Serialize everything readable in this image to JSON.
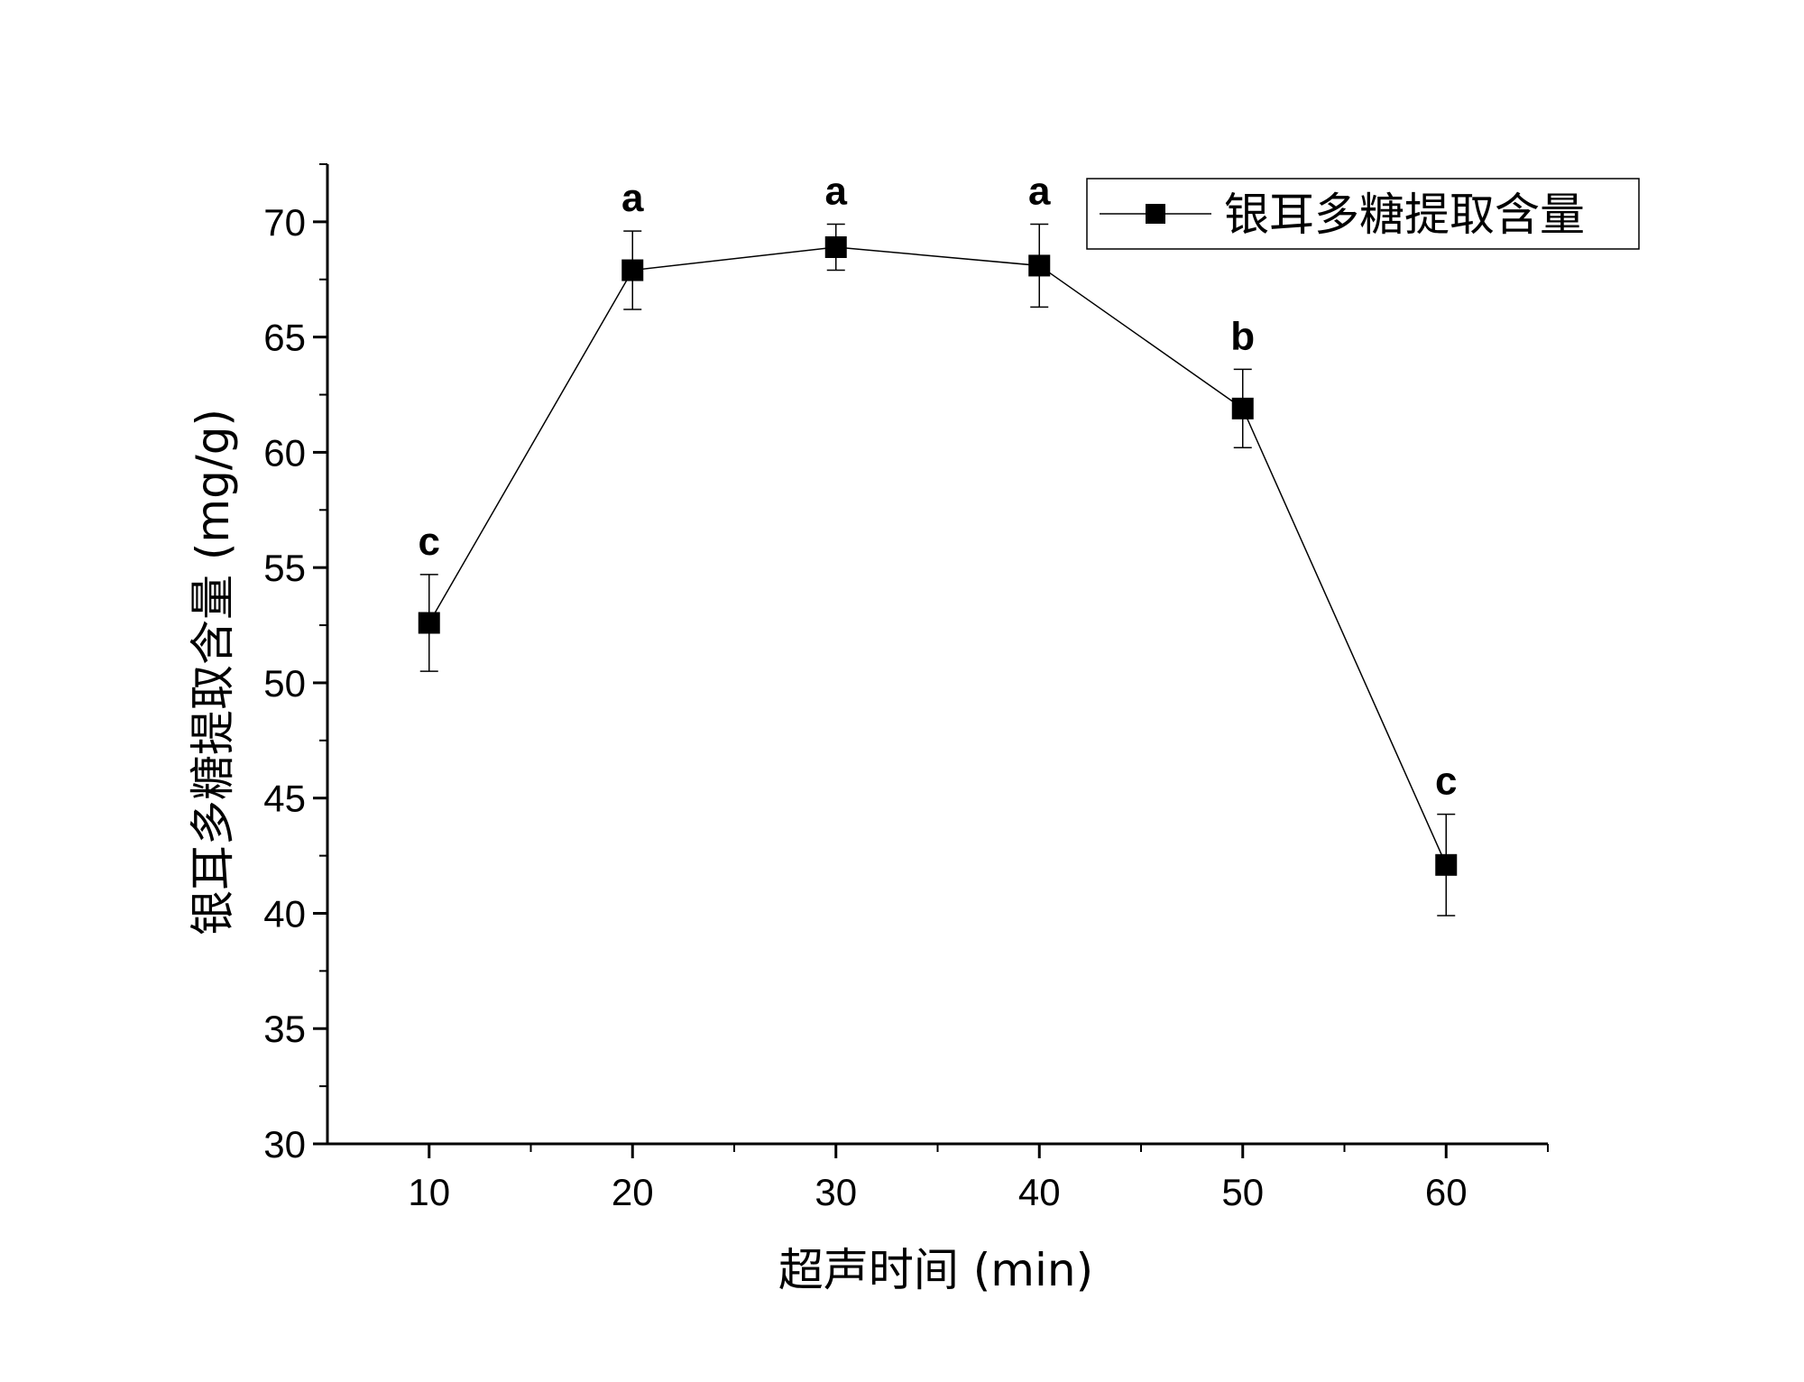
{
  "chart_data": {
    "type": "line",
    "xlabel": "超声时间 (min)",
    "ylabel": "银耳多糖提取含量 (mg/g)",
    "xlim": [
      5,
      65
    ],
    "ylim": [
      30,
      72.5
    ],
    "x_ticks": [
      10,
      20,
      30,
      40,
      50,
      60
    ],
    "x_tick_labels": [
      "10",
      "20",
      "30",
      "40",
      "50",
      "60"
    ],
    "y_ticks": [
      30,
      35,
      40,
      45,
      50,
      55,
      60,
      65,
      70
    ],
    "y_tick_labels": [
      "30",
      "35",
      "40",
      "45",
      "50",
      "55",
      "60",
      "65",
      "70"
    ],
    "x_minor_ticks": [
      15,
      25,
      35,
      45,
      55,
      65
    ],
    "y_minor_ticks": [
      32.5,
      37.5,
      42.5,
      47.5,
      52.5,
      57.5,
      62.5,
      67.5,
      72.5
    ],
    "legend_position": "top-right",
    "grid": false,
    "series": [
      {
        "name": "银耳多糖提取含量",
        "color": "#000000",
        "marker": "square",
        "x": [
          10,
          20,
          30,
          40,
          50,
          60
        ],
        "y": [
          52.6,
          67.9,
          68.9,
          68.1,
          61.9,
          42.1
        ],
        "error": [
          2.1,
          1.7,
          1.0,
          1.8,
          1.7,
          2.2
        ],
        "significance": [
          "c",
          "a",
          "a",
          "a",
          "b",
          "c"
        ]
      }
    ]
  }
}
